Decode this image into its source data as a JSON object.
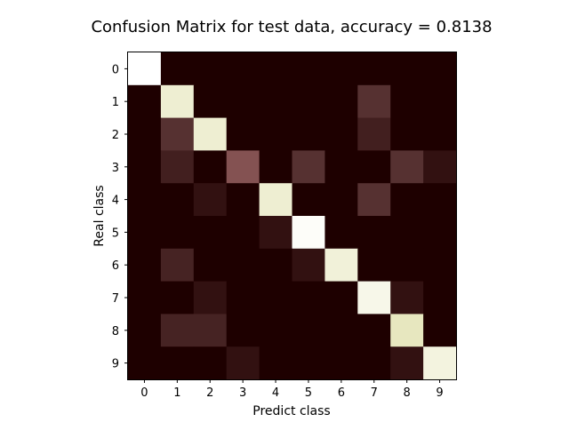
{
  "chart_data": {
    "type": "heatmap",
    "title": "Confusion Matrix for test data, accuracy = 0.8138",
    "xlabel": "Predict class",
    "ylabel": "Real class",
    "x_ticks": [
      "0",
      "1",
      "2",
      "3",
      "4",
      "5",
      "6",
      "7",
      "8",
      "9"
    ],
    "y_ticks": [
      "0",
      "1",
      "2",
      "3",
      "4",
      "5",
      "6",
      "7",
      "8",
      "9"
    ],
    "colormap": "pink",
    "value_range": [
      0,
      1
    ],
    "matrix": [
      [
        1.0,
        0.0,
        0.0,
        0.0,
        0.0,
        0.0,
        0.0,
        0.0,
        0.0,
        0.0
      ],
      [
        0.0,
        0.86,
        0.0,
        0.0,
        0.0,
        0.0,
        0.0,
        0.14,
        0.0,
        0.0
      ],
      [
        0.0,
        0.14,
        0.86,
        0.0,
        0.0,
        0.0,
        0.0,
        0.09,
        0.0,
        0.0
      ],
      [
        0.0,
        0.09,
        0.0,
        0.29,
        0.0,
        0.14,
        0.0,
        0.0,
        0.14,
        0.05
      ],
      [
        0.0,
        0.0,
        0.05,
        0.0,
        0.86,
        0.0,
        0.0,
        0.14,
        0.0,
        0.0
      ],
      [
        0.0,
        0.0,
        0.0,
        0.0,
        0.05,
        0.98,
        0.0,
        0.0,
        0.0,
        0.0
      ],
      [
        0.0,
        0.1,
        0.0,
        0.0,
        0.0,
        0.05,
        0.88,
        0.0,
        0.0,
        0.0
      ],
      [
        0.0,
        0.0,
        0.05,
        0.0,
        0.0,
        0.0,
        0.0,
        0.93,
        0.05,
        0.0
      ],
      [
        0.0,
        0.1,
        0.1,
        0.0,
        0.0,
        0.0,
        0.0,
        0.0,
        0.8,
        0.0
      ],
      [
        0.0,
        0.0,
        0.0,
        0.05,
        0.0,
        0.0,
        0.0,
        0.0,
        0.05,
        0.9
      ]
    ],
    "grid": false,
    "legend": "none"
  }
}
